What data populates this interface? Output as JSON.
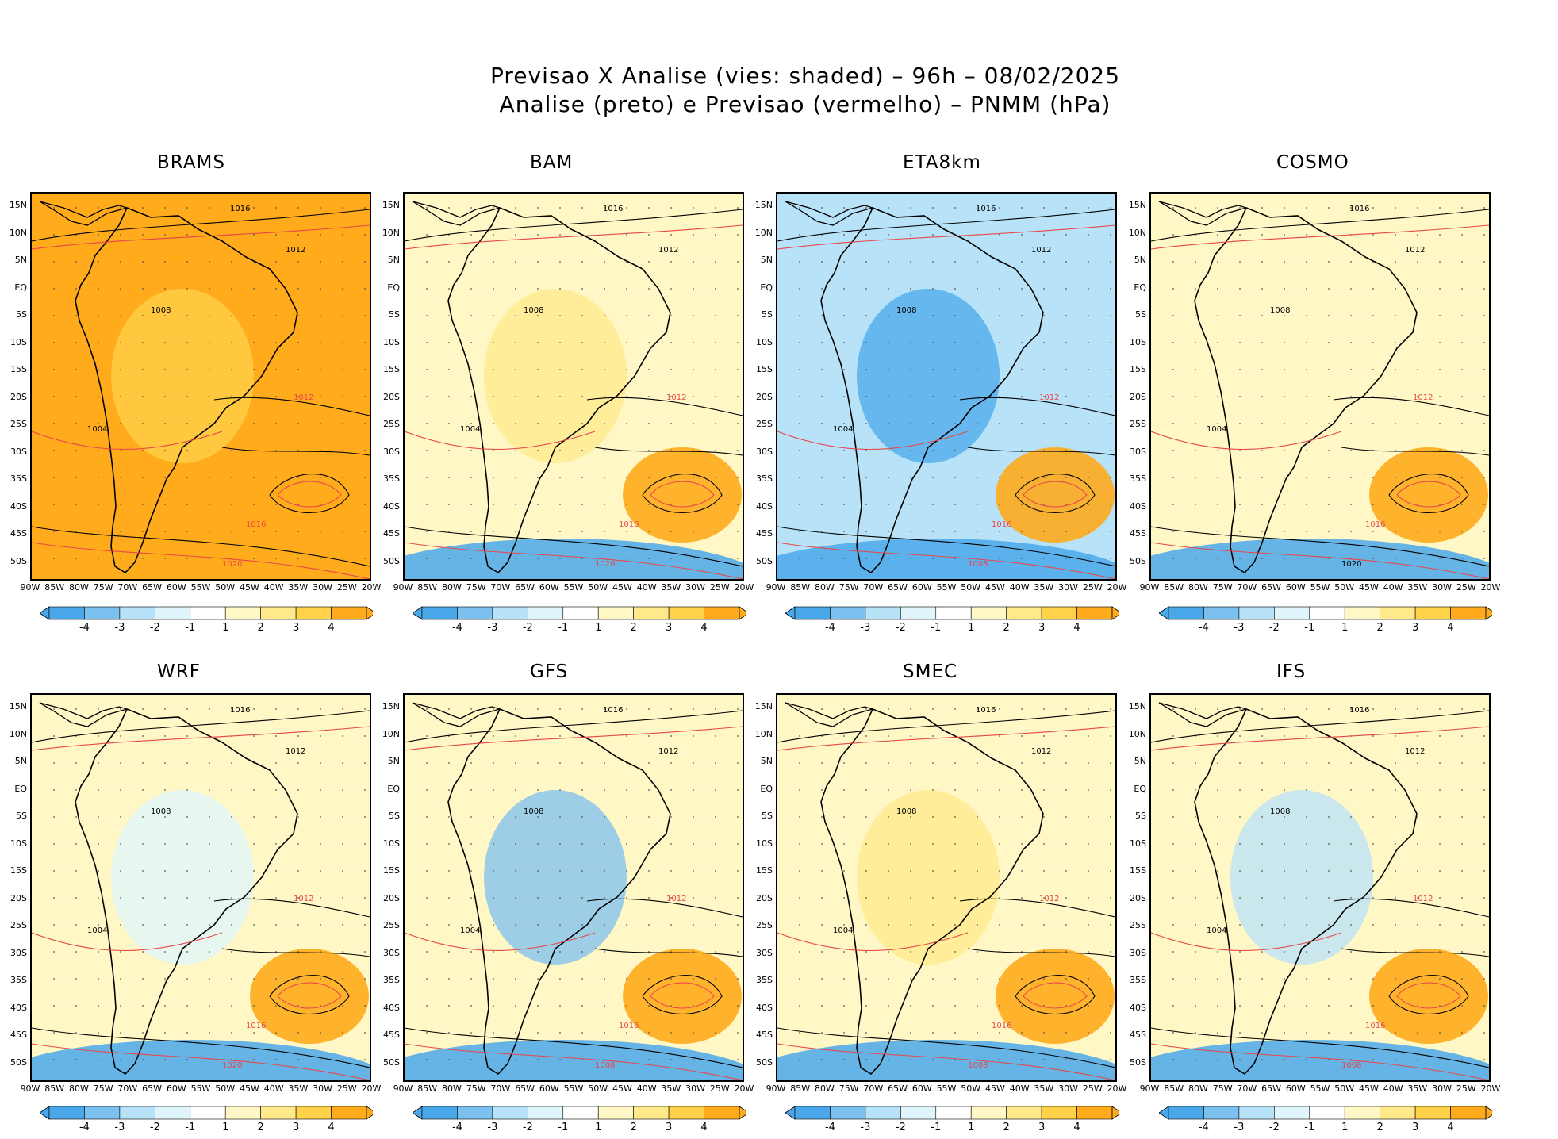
{
  "title": {
    "line1": "Previsao X Analise (vies: shaded) – 96h – 08/02/2025",
    "line2": "Analise (preto) e Previsao (vermelho) – PNMM (hPa)"
  },
  "colors": {
    "neg4": "#4aa8ea",
    "neg3": "#7cc0f0",
    "neg2": "#b7e2f8",
    "neg1": "#dff5fb",
    "pos1": "#fff7c6",
    "pos2": "#ffe98a",
    "pos3": "#ffd24a",
    "pos4": "#ffab1c",
    "analysis": "#000000",
    "forecast": "#e8474a"
  },
  "lat_labels": [
    "15N",
    "10N",
    "5N",
    "EQ",
    "5S",
    "10S",
    "15S",
    "20S",
    "25S",
    "30S",
    "35S",
    "40S",
    "45S",
    "50S"
  ],
  "lon_labels": [
    "90W",
    "85W",
    "80W",
    "75W",
    "70W",
    "65W",
    "60W",
    "55W",
    "50W",
    "45W",
    "40W",
    "35W",
    "30W",
    "25W",
    "20W"
  ],
  "colorbar_labels": [
    "-4",
    "-3",
    "-2",
    "-1",
    "1",
    "2",
    "3",
    "4"
  ],
  "panels": [
    {
      "name": "BRAMS",
      "contours": [
        {
          "t": "1016",
          "c": "a"
        },
        {
          "t": "1012",
          "c": "a"
        },
        {
          "t": "1008",
          "c": "a"
        },
        {
          "t": "1004",
          "c": "a"
        },
        {
          "t": "1012",
          "c": "f"
        },
        {
          "t": "1016",
          "c": "f"
        },
        {
          "t": "1020",
          "c": "f"
        }
      ]
    },
    {
      "name": "BAM",
      "contours": [
        {
          "t": "1016",
          "c": "a"
        },
        {
          "t": "1012",
          "c": "a"
        },
        {
          "t": "1008",
          "c": "a"
        },
        {
          "t": "1004",
          "c": "a"
        },
        {
          "t": "1012",
          "c": "f"
        },
        {
          "t": "1016",
          "c": "f"
        },
        {
          "t": "1020",
          "c": "f"
        }
      ]
    },
    {
      "name": "ETA8km",
      "contours": [
        {
          "t": "1016",
          "c": "a"
        },
        {
          "t": "1012",
          "c": "a"
        },
        {
          "t": "1008",
          "c": "a"
        },
        {
          "t": "1004",
          "c": "a"
        },
        {
          "t": "1012",
          "c": "f"
        },
        {
          "t": "1016",
          "c": "f"
        },
        {
          "t": "1008",
          "c": "f"
        }
      ]
    },
    {
      "name": "COSMO",
      "contours": [
        {
          "t": "1016",
          "c": "a"
        },
        {
          "t": "1012",
          "c": "a"
        },
        {
          "t": "1008",
          "c": "a"
        },
        {
          "t": "1004",
          "c": "a"
        },
        {
          "t": "1012",
          "c": "f"
        },
        {
          "t": "1016",
          "c": "f"
        },
        {
          "t": "1020",
          "c": "a"
        }
      ]
    },
    {
      "name": "WRF",
      "contours": [
        {
          "t": "1016",
          "c": "a"
        },
        {
          "t": "1012",
          "c": "a"
        },
        {
          "t": "1008",
          "c": "a"
        },
        {
          "t": "1004",
          "c": "a"
        },
        {
          "t": "1012",
          "c": "f"
        },
        {
          "t": "1016",
          "c": "f"
        },
        {
          "t": "1020",
          "c": "f"
        }
      ]
    },
    {
      "name": "GFS",
      "contours": [
        {
          "t": "1016",
          "c": "a"
        },
        {
          "t": "1012",
          "c": "a"
        },
        {
          "t": "1008",
          "c": "a"
        },
        {
          "t": "1004",
          "c": "a"
        },
        {
          "t": "1012",
          "c": "f"
        },
        {
          "t": "1016",
          "c": "f"
        },
        {
          "t": "1008",
          "c": "f"
        }
      ]
    },
    {
      "name": "SMEC",
      "contours": [
        {
          "t": "1016",
          "c": "a"
        },
        {
          "t": "1012",
          "c": "a"
        },
        {
          "t": "1008",
          "c": "a"
        },
        {
          "t": "1004",
          "c": "a"
        },
        {
          "t": "1012",
          "c": "f"
        },
        {
          "t": "1016",
          "c": "f"
        },
        {
          "t": "1008",
          "c": "f"
        }
      ]
    },
    {
      "name": "IFS",
      "contours": [
        {
          "t": "1016",
          "c": "a"
        },
        {
          "t": "1012",
          "c": "a"
        },
        {
          "t": "1008",
          "c": "a"
        },
        {
          "t": "1004",
          "c": "a"
        },
        {
          "t": "1012",
          "c": "f"
        },
        {
          "t": "1016",
          "c": "f"
        },
        {
          "t": "1008",
          "c": "f"
        }
      ]
    }
  ]
}
